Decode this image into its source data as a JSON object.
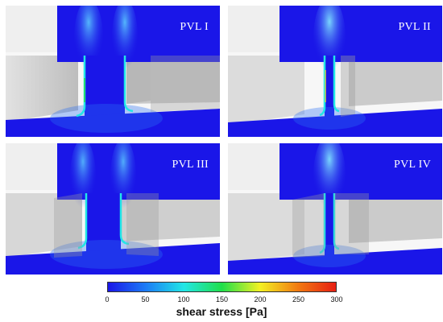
{
  "panels": [
    {
      "label": "PVL I"
    },
    {
      "label": "PVL II"
    },
    {
      "label": "PVL III"
    },
    {
      "label": "PVL IV"
    }
  ],
  "colorbar": {
    "title": "shear stress [Pa]",
    "min": 0,
    "max": 300,
    "ticks": [
      "0",
      "50",
      "100",
      "150",
      "200",
      "250",
      "300"
    ],
    "colors": [
      "#1a16e8",
      "#1b7cf6",
      "#22e6e6",
      "#1fdf4a",
      "#f3f123",
      "#f17a11",
      "#e71f13"
    ]
  }
}
